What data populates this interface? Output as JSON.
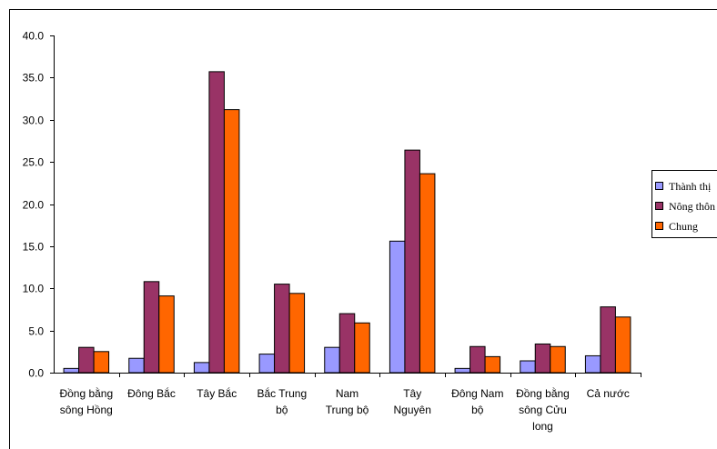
{
  "chart_data": {
    "type": "bar",
    "title": "",
    "xlabel": "",
    "ylabel": "",
    "ylim": [
      0,
      40
    ],
    "yticks": [
      "0.0",
      "5.0",
      "10.0",
      "15.0",
      "20.0",
      "25.0",
      "30.0",
      "35.0",
      "40.0"
    ],
    "grid": false,
    "legend_position": "right",
    "categories": [
      [
        "Đồng bằng",
        "sông Hồng"
      ],
      [
        "Đông Bắc"
      ],
      [
        "Tây Bắc"
      ],
      [
        "Bắc Trung",
        "bộ"
      ],
      [
        "Nam",
        "Trung bộ"
      ],
      [
        "Tây",
        "Nguyên"
      ],
      [
        "Đông Nam",
        "bộ"
      ],
      [
        "Đồng bằng",
        "sông Cửu",
        "long"
      ],
      [
        "Cả nước"
      ]
    ],
    "series": [
      {
        "name": "Thành thị",
        "color": "#9999ff",
        "values": [
          0.5,
          1.7,
          1.2,
          2.2,
          3.0,
          15.6,
          0.5,
          1.4,
          2.0
        ]
      },
      {
        "name": "Nông thôn",
        "color": "#993366",
        "values": [
          3.0,
          10.8,
          35.7,
          10.5,
          7.0,
          26.4,
          3.1,
          3.4,
          7.8
        ]
      },
      {
        "name": "Chung",
        "color": "#ff6600",
        "values": [
          2.5,
          9.1,
          31.2,
          9.4,
          5.9,
          23.6,
          1.9,
          3.1,
          6.6
        ]
      }
    ]
  }
}
